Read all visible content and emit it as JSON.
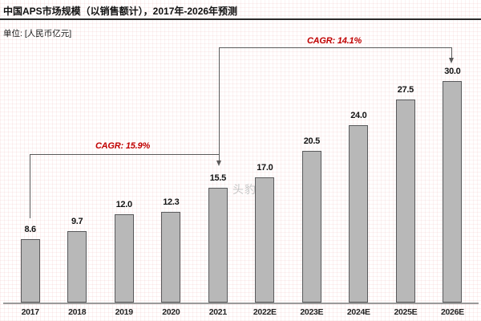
{
  "header": {
    "title": "中国APS市场规模（以销售额计），2017年-2026年预测",
    "unit_label": "单位: [人民币亿元]"
  },
  "watermark": "头豹",
  "chart_data": {
    "type": "bar",
    "title": "中国APS市场规模（以销售额计），2017年-2026年预测",
    "ylabel": "人民币亿元",
    "categories": [
      "2017",
      "2018",
      "2019",
      "2020",
      "2021",
      "2022E",
      "2023E",
      "2024E",
      "2025E",
      "2026E"
    ],
    "values": [
      8.6,
      9.7,
      12.0,
      12.3,
      15.5,
      17.0,
      20.5,
      24.0,
      27.5,
      30.0
    ],
    "value_labels": [
      "8.6",
      "9.7",
      "12.0",
      "12.3",
      "15.5",
      "17.0",
      "20.5",
      "24.0",
      "27.5",
      "30.0"
    ],
    "ylim": [
      0,
      33
    ],
    "grid": false,
    "legend": "none",
    "annotations": [
      {
        "label": "CAGR: 15.9%",
        "value": "15.9%",
        "from": "2017",
        "to": "2021"
      },
      {
        "label": "CAGR: 14.1%",
        "value": "14.1%",
        "from": "2021",
        "to": "2026E"
      }
    ],
    "colors": {
      "bar_fill": "#b8b8b8",
      "bar_border": "#59595b",
      "annotation_red": "#c00000",
      "axis_line": "#9a9a9a"
    }
  }
}
